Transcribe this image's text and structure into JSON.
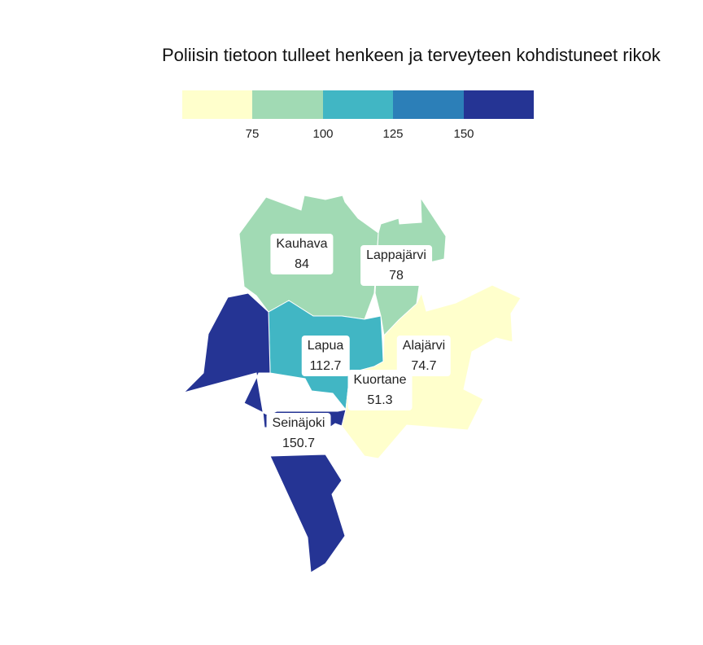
{
  "title": "Poliisin tietoon tulleet henkeen ja terveyteen kohdistuneet rikok",
  "legend": {
    "colors": [
      "#ffffcc",
      "#a1dab4",
      "#41b6c4",
      "#2c7fb8",
      "#253494"
    ],
    "ticks": [
      "75",
      "100",
      "125",
      "150"
    ]
  },
  "map_data": {
    "type": "choropleth",
    "regions": [
      {
        "name": "Kauhava",
        "value": 84,
        "display": "84",
        "color": "#a1dab4"
      },
      {
        "name": "Lappajärvi",
        "value": 78,
        "display": "78",
        "color": "#a1dab4"
      },
      {
        "name": "Lapua",
        "value": 112.7,
        "display": "112.7",
        "color": "#41b6c4"
      },
      {
        "name": "Alajärvi",
        "value": 74.7,
        "display": "74.7",
        "color": "#ffffcc"
      },
      {
        "name": "Kuortane",
        "value": 51.3,
        "display": "51.3",
        "color": "#ffffcc"
      },
      {
        "name": "Seinäjoki",
        "value": 150.7,
        "display": "150.7",
        "color": "#253494"
      }
    ]
  }
}
